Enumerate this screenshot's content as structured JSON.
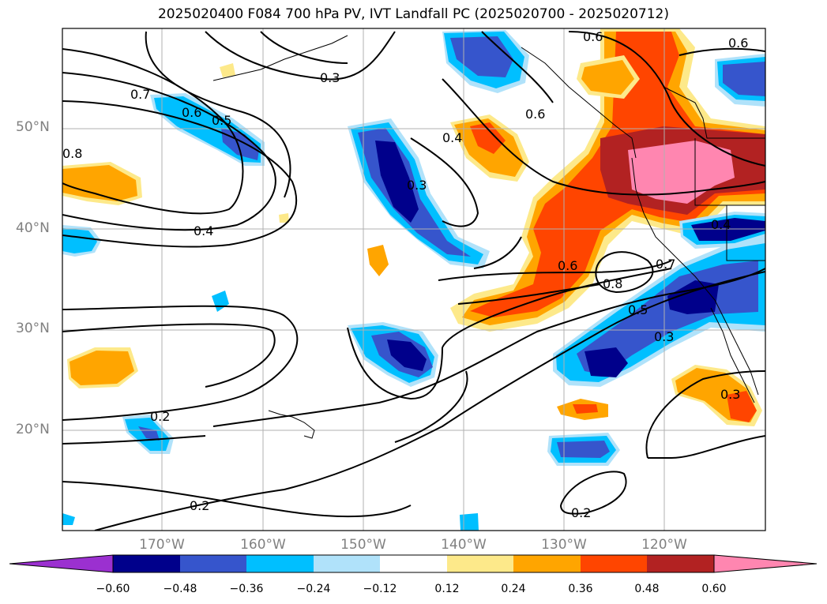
{
  "title": "2025020400 F084 700 hPa PV, IVT Landfall PC (2025020700 - 2025020712)",
  "lat_labels": [
    "50°N",
    "40°N",
    "30°N",
    "20°N"
  ],
  "lon_labels": [
    "170°W",
    "160°W",
    "150°W",
    "140°W",
    "130°W",
    "120°W"
  ],
  "colorbar": {
    "ticks": [
      "−0.60",
      "−0.48",
      "−0.36",
      "−0.24",
      "−0.12",
      "0.12",
      "0.24",
      "0.36",
      "0.48",
      "0.60"
    ],
    "colors": {
      "below": "#9b30d0",
      "n060": "#00008b",
      "n048": "#3655cc",
      "n036": "#00bfff",
      "n024": "#b0e2fa",
      "zero": "#ffffff",
      "p012": "#fde98a",
      "p024": "#ffa500",
      "p036": "#ff4500",
      "p048": "#b22222",
      "above": "#ff86b0"
    }
  },
  "contour_labels": [
    "0.3",
    "0.6",
    "0.6",
    "0.7",
    "0.6",
    "0.5",
    "0.8",
    "0.3",
    "0.4",
    "0.6",
    "0.4",
    "0.6",
    "0.8",
    "0.7",
    "0.5",
    "0.3",
    "0.3",
    "0.2",
    "0.2",
    "0.2",
    "0.4"
  ]
}
